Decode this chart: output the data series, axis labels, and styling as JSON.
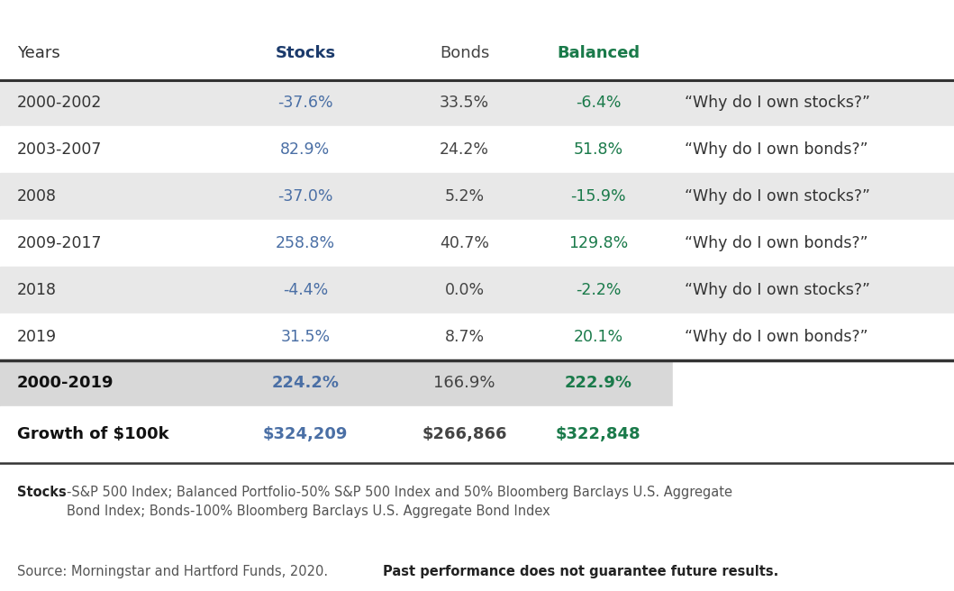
{
  "header": [
    "Years",
    "Stocks",
    "Bonds",
    "Balanced",
    ""
  ],
  "rows": [
    [
      "2000-2002",
      "-37.6%",
      "33.5%",
      "-6.4%",
      "“Why do I own stocks?”"
    ],
    [
      "2003-2007",
      "82.9%",
      "24.2%",
      "51.8%",
      "“Why do I own bonds?”"
    ],
    [
      "2008",
      "-37.0%",
      "5.2%",
      "-15.9%",
      "“Why do I own stocks?”"
    ],
    [
      "2009-2017",
      "258.8%",
      "40.7%",
      "129.8%",
      "“Why do I own bonds?”"
    ],
    [
      "2018",
      "-4.4%",
      "0.0%",
      "-2.2%",
      "“Why do I own stocks?”"
    ],
    [
      "2019",
      "31.5%",
      "8.7%",
      "20.1%",
      "“Why do I own bonds?”"
    ]
  ],
  "summary_row1": [
    "2000-2019",
    "224.2%",
    "166.9%",
    "222.9%",
    ""
  ],
  "summary_row2": [
    "Growth of $100k",
    "$324,209",
    "$266,866",
    "$322,848",
    ""
  ],
  "footnote1_bold": "Stocks",
  "footnote1_rest": "-S&P 500 Index; Balanced Portfolio-50% S&P 500 Index and 50% Bloomberg Barclays U.S. Aggregate\nBond Index; Bonds-100% Bloomberg Barclays U.S. Aggregate Bond Index",
  "footnote2_normal": "Source: Morningstar and Hartford Funds, 2020. ",
  "footnote2_bold": "Past performance does not guarantee future results.",
  "header_stocks_color": "#1b3a6b",
  "header_bonds_color": "#444444",
  "header_balanced_color": "#1a7a4a",
  "stocks_color": "#4a6fa5",
  "bonds_color": "#444444",
  "balanced_color": "#1a7a4a",
  "row_bg_light": "#e8e8e8",
  "row_bg_white": "#ffffff",
  "summary_bg": "#d8d8d8",
  "header_bg": "#ffffff",
  "border_color": "#333333",
  "years_color": "#333333",
  "header_fontsize": 13,
  "row_fontsize": 12.5,
  "summary_fontsize": 13,
  "footnote_fontsize": 10.5
}
